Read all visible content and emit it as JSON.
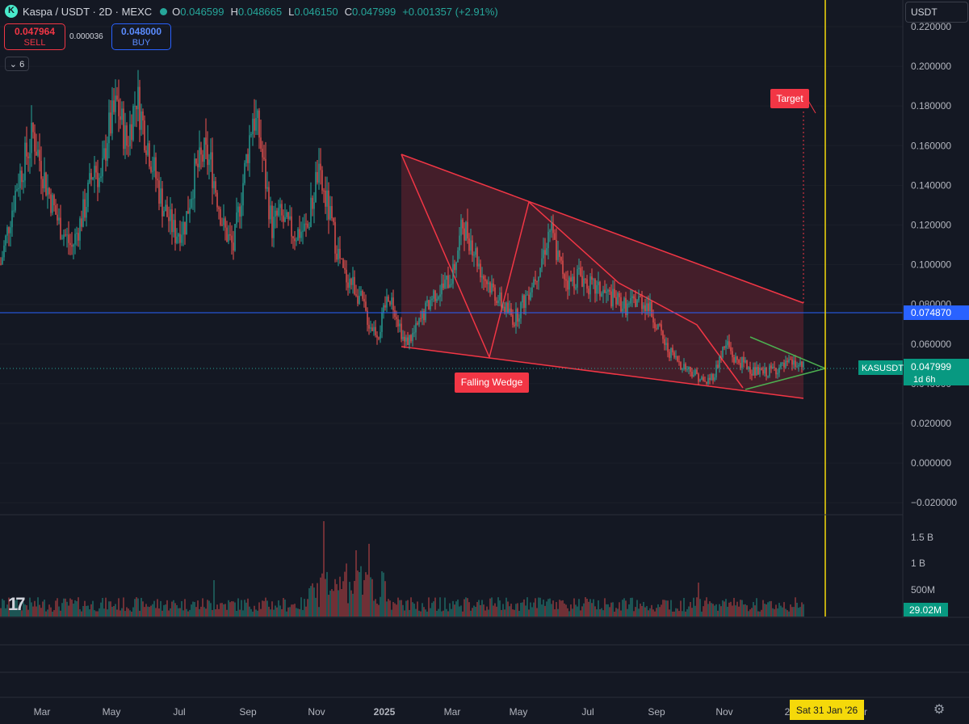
{
  "header": {
    "symbol": "Kaspa / USDT · 2D · MEXC",
    "o_label": "O",
    "o_value": "0.046599",
    "h_label": "H",
    "h_value": "0.048665",
    "l_label": "L",
    "l_value": "0.046150",
    "c_label": "C",
    "c_value": "0.047999",
    "change": "+0.001357 (+2.91%)"
  },
  "trade": {
    "sell_price": "0.047964",
    "sell_label": "SELL",
    "spread": "0.000036",
    "buy_price": "0.048000",
    "buy_label": "BUY"
  },
  "indicators_toggle": "6",
  "currency": "USDT",
  "settings_icon": "gear-icon",
  "colors": {
    "bg": "#141823",
    "up": "#26a69a",
    "down": "#ef5350",
    "wedge": "#f23645",
    "triangle": "#4caf50",
    "hline": "#2962ff",
    "vline": "#f5d90a"
  },
  "chart_data": {
    "type": "candlestick",
    "price_axis": {
      "ticks": [
        "0.220000",
        "0.200000",
        "0.180000",
        "0.160000",
        "0.140000",
        "0.120000",
        "0.100000",
        "0.080000",
        "0.060000",
        "0.040000",
        "0.020000",
        "0.000000",
        "−0.020000"
      ],
      "range": [
        -0.02,
        0.22
      ]
    },
    "volume_axis": {
      "ticks": [
        "1.5 B",
        "1 B",
        "500M"
      ]
    },
    "time_axis": {
      "ticks": [
        "Mar",
        "May",
        "Jul",
        "Sep",
        "Nov",
        "2025",
        "Mar",
        "May",
        "Jul",
        "Sep",
        "Nov",
        "2",
        "r"
      ]
    },
    "last_price": {
      "symbol": "KASUSDT",
      "price": "0.047999",
      "countdown": "1d 6h"
    },
    "horizontal_line": {
      "price": "0.074870"
    },
    "last_volume": "29.02M",
    "cursor_date": "Sat 31 Jan '26",
    "annotations": {
      "pattern": "Falling Wedge",
      "target": "Target"
    },
    "price_path": [
      [
        0,
        0.1
      ],
      [
        10,
        0.14
      ],
      [
        20,
        0.165
      ],
      [
        28,
        0.14
      ],
      [
        36,
        0.12
      ],
      [
        44,
        0.108
      ],
      [
        52,
        0.128
      ],
      [
        58,
        0.15
      ],
      [
        62,
        0.14
      ],
      [
        66,
        0.165
      ],
      [
        72,
        0.18
      ],
      [
        78,
        0.16
      ],
      [
        84,
        0.185
      ],
      [
        88,
        0.17
      ],
      [
        94,
        0.15
      ],
      [
        100,
        0.13
      ],
      [
        108,
        0.115
      ],
      [
        114,
        0.12
      ],
      [
        120,
        0.145
      ],
      [
        126,
        0.155
      ],
      [
        130,
        0.15
      ],
      [
        138,
        0.118
      ],
      [
        144,
        0.108
      ],
      [
        152,
        0.152
      ],
      [
        156,
        0.175
      ],
      [
        160,
        0.165
      ],
      [
        168,
        0.118
      ],
      [
        172,
        0.125
      ],
      [
        176,
        0.12
      ],
      [
        182,
        0.115
      ],
      [
        190,
        0.118
      ],
      [
        196,
        0.145
      ],
      [
        202,
        0.13
      ],
      [
        208,
        0.108
      ],
      [
        212,
        0.095
      ],
      [
        218,
        0.09
      ],
      [
        224,
        0.08
      ],
      [
        228,
        0.07
      ],
      [
        234,
        0.065
      ],
      [
        240,
        0.085
      ],
      [
        244,
        0.078
      ],
      [
        250,
        0.06
      ],
      [
        256,
        0.065
      ],
      [
        262,
        0.075
      ],
      [
        268,
        0.085
      ],
      [
        274,
        0.088
      ],
      [
        280,
        0.095
      ],
      [
        286,
        0.12
      ],
      [
        292,
        0.11
      ],
      [
        298,
        0.095
      ],
      [
        304,
        0.088
      ],
      [
        310,
        0.08
      ],
      [
        318,
        0.072
      ],
      [
        326,
        0.085
      ],
      [
        334,
        0.1
      ],
      [
        340,
        0.118
      ],
      [
        346,
        0.1
      ],
      [
        352,
        0.09
      ],
      [
        358,
        0.095
      ],
      [
        366,
        0.088
      ],
      [
        374,
        0.085
      ],
      [
        380,
        0.082
      ],
      [
        388,
        0.078
      ],
      [
        394,
        0.082
      ],
      [
        400,
        0.08
      ],
      [
        406,
        0.07
      ],
      [
        412,
        0.058
      ],
      [
        418,
        0.052
      ],
      [
        424,
        0.048
      ],
      [
        430,
        0.045
      ],
      [
        436,
        0.04
      ],
      [
        442,
        0.045
      ],
      [
        446,
        0.055
      ],
      [
        450,
        0.06
      ],
      [
        454,
        0.052
      ],
      [
        460,
        0.05
      ],
      [
        466,
        0.046
      ],
      [
        472,
        0.045
      ],
      [
        478,
        0.047
      ],
      [
        484,
        0.048
      ],
      [
        490,
        0.05
      ],
      [
        496,
        0.048
      ]
    ]
  }
}
